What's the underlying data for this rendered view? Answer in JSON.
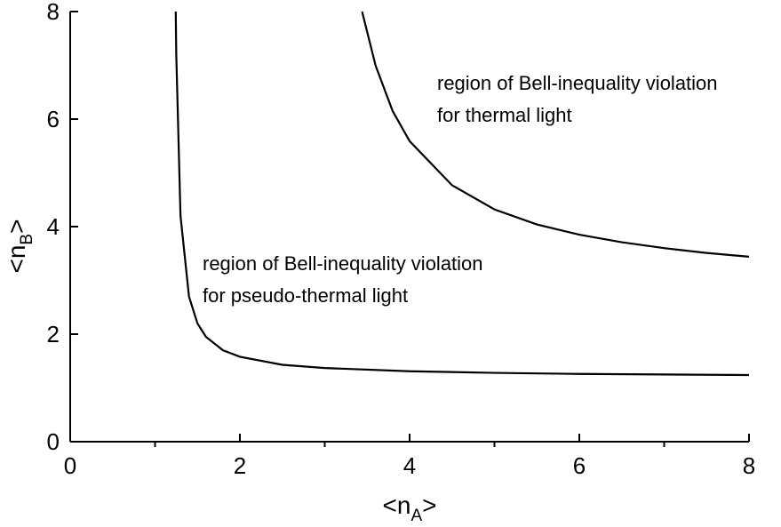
{
  "chart_data": {
    "type": "line",
    "x_label": [
      "<n",
      "A",
      ">"
    ],
    "y_label": [
      "<n",
      "B",
      ">"
    ],
    "xlim": [
      0,
      8
    ],
    "xticks": [
      0,
      2,
      4,
      6,
      8
    ],
    "xminor": [
      1,
      3,
      5,
      7
    ],
    "ylim": [
      0,
      8
    ],
    "yticks": [
      0,
      2,
      4,
      6,
      8
    ],
    "grid": false,
    "series": [
      {
        "color": "#000000",
        "x": [
          1.244,
          1.25,
          1.3,
          1.4,
          1.5,
          1.6,
          1.8,
          2,
          2.5,
          3,
          4,
          5,
          6,
          7,
          8
        ],
        "values": [
          8.0,
          7.2,
          4.2,
          2.7,
          2.2,
          1.95,
          1.7,
          1.58,
          1.43,
          1.37,
          1.31,
          1.28,
          1.26,
          1.25,
          1.24
        ]
      },
      {
        "color": "#000000",
        "x": [
          3.44,
          3.6,
          3.8,
          4,
          4.5,
          5,
          5.5,
          6,
          6.5,
          7,
          7.5,
          8
        ],
        "values": [
          8.0,
          6.99,
          6.15,
          5.59,
          4.77,
          4.32,
          4.04,
          3.85,
          3.71,
          3.6,
          3.51,
          3.44
        ]
      }
    ],
    "annotations": [
      [
        "region of Bell-inequality violation",
        "for thermal light"
      ],
      [
        "region of Bell-inequality violation",
        "for pseudo-thermal light"
      ]
    ]
  }
}
